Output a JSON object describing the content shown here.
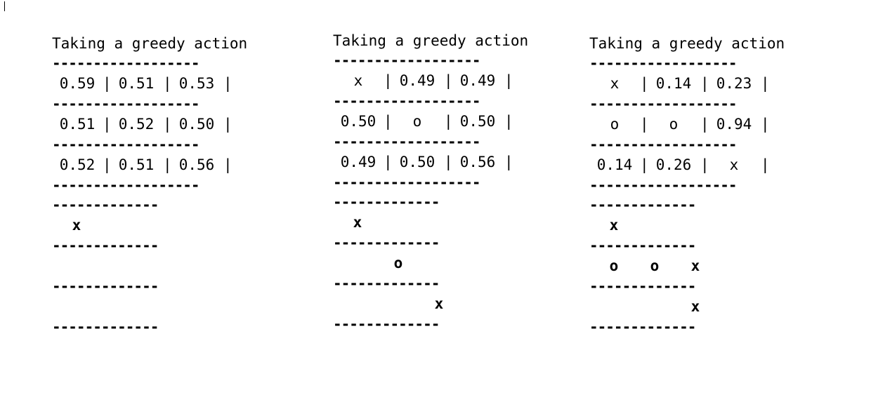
{
  "panels": [
    {
      "title": "Taking a greedy action",
      "values": [
        [
          "0.59",
          "0.51",
          "0.53"
        ],
        [
          "0.51",
          "0.52",
          "0.50"
        ],
        [
          "0.52",
          "0.51",
          "0.56"
        ]
      ],
      "board": [
        [
          "x",
          "",
          ""
        ],
        [
          "",
          "",
          ""
        ],
        [
          "",
          "",
          ""
        ]
      ]
    },
    {
      "title": "Taking a greedy action",
      "values": [
        [
          "x",
          "0.49",
          "0.49"
        ],
        [
          "0.50",
          "o",
          "0.50"
        ],
        [
          "0.49",
          "0.50",
          "0.56"
        ]
      ],
      "board": [
        [
          "x",
          "",
          ""
        ],
        [
          "",
          "o",
          ""
        ],
        [
          "",
          "",
          "x"
        ]
      ]
    },
    {
      "title": "Taking a greedy action",
      "values": [
        [
          "x",
          "0.14",
          "0.23"
        ],
        [
          "o",
          "o",
          "0.94"
        ],
        [
          "0.14",
          "0.26",
          "x"
        ]
      ],
      "board": [
        [
          "x",
          "",
          ""
        ],
        [
          "o",
          "o",
          "x"
        ],
        [
          "",
          "",
          "x"
        ]
      ]
    }
  ]
}
